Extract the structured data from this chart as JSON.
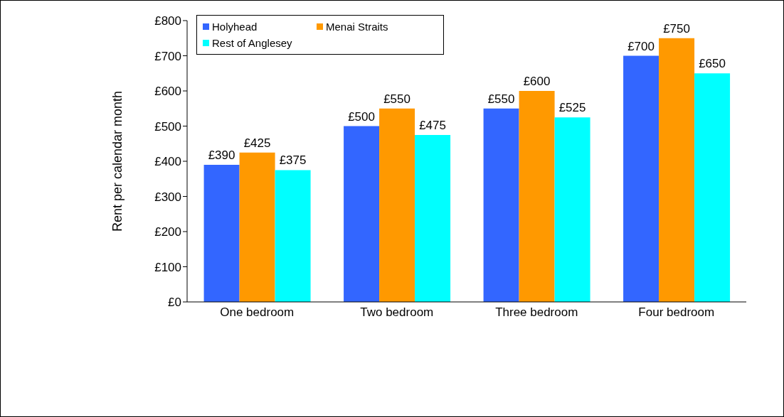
{
  "chart_data": {
    "type": "bar",
    "ylabel": "Rent per calendar month",
    "categories": [
      "One bedroom",
      "Two bedroom",
      "Three bedroom",
      "Four bedroom"
    ],
    "series": [
      {
        "name": "Holyhead",
        "color": "#3366ff",
        "values": [
          390,
          500,
          550,
          700
        ],
        "value_labels": [
          "£390",
          "£500",
          "£550",
          "£700"
        ]
      },
      {
        "name": "Menai Straits",
        "color": "#ff9900",
        "values": [
          425,
          550,
          600,
          750
        ],
        "value_labels": [
          "£425",
          "£550",
          "£600",
          "£750"
        ]
      },
      {
        "name": "Rest of Anglesey",
        "color": "#00ffff",
        "values": [
          375,
          475,
          525,
          650
        ],
        "value_labels": [
          "£375",
          "£475",
          "£525",
          "£650"
        ]
      }
    ],
    "ylim": [
      0,
      800
    ],
    "yticks": [
      {
        "value": 0,
        "label": "£0"
      },
      {
        "value": 100,
        "label": "£100"
      },
      {
        "value": 200,
        "label": "£200"
      },
      {
        "value": 300,
        "label": "£300"
      },
      {
        "value": 400,
        "label": "£400"
      },
      {
        "value": 500,
        "label": "£500"
      },
      {
        "value": 600,
        "label": "£600"
      },
      {
        "value": 700,
        "label": "£700"
      },
      {
        "value": 800,
        "label": "£800"
      }
    ],
    "grid": false,
    "legend": "top left"
  }
}
